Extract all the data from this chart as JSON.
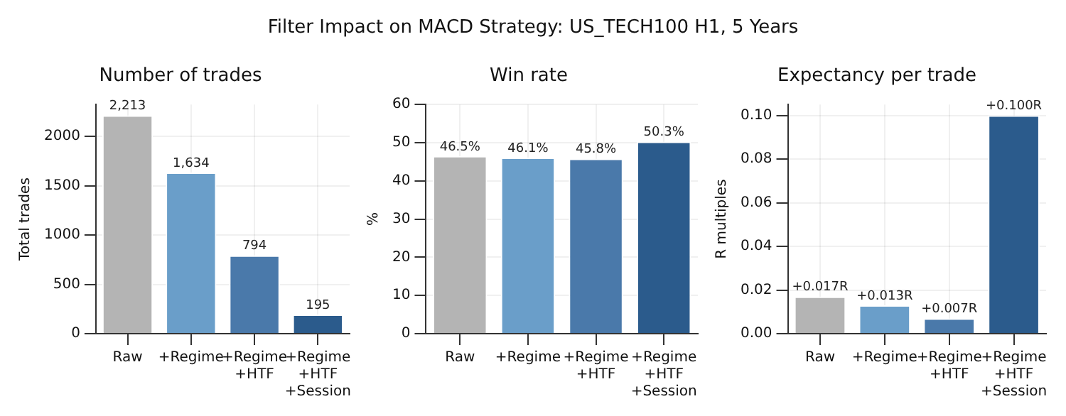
{
  "chart_data": [
    {
      "type": "bar",
      "title": "Filter Impact on MACD Strategy: US_TECH100 H1, 5 Years",
      "subtitle": "Number of trades",
      "ylabel": "Total trades",
      "categories": [
        "Raw",
        "+Regime",
        "+Regime\n+HTF",
        "+Regime\n+HTF\n+Session"
      ],
      "values": [
        2213,
        1634,
        794,
        195
      ],
      "colors": [
        "#b4b4b4",
        "#6a9ec9",
        "#4a79aa",
        "#2b5b8c"
      ],
      "value_labels": [
        "2,213",
        "1,634",
        "794",
        "195"
      ],
      "ylim": [
        0,
        2324
      ],
      "yticks": [
        0,
        500,
        1000,
        1500,
        2000
      ],
      "grid": true
    },
    {
      "type": "bar",
      "subtitle": "Win rate",
      "ylabel": "%",
      "categories": [
        "Raw",
        "+Regime",
        "+Regime\n+HTF",
        "+Regime\n+HTF\n+Session"
      ],
      "values": [
        46.5,
        46.1,
        45.8,
        50.3
      ],
      "colors": [
        "#b4b4b4",
        "#6a9ec9",
        "#4a79aa",
        "#2b5b8c"
      ],
      "value_labels": [
        "46.5%",
        "46.1%",
        "45.8%",
        "50.3%"
      ],
      "ylim": [
        0,
        60
      ],
      "yticks": [
        0,
        10,
        20,
        30,
        40,
        50,
        60
      ],
      "grid": true
    },
    {
      "type": "bar",
      "subtitle": "Expectancy per trade",
      "ylabel": "R multiples",
      "categories": [
        "Raw",
        "+Regime",
        "+Regime\n+HTF",
        "+Regime\n+HTF\n+Session"
      ],
      "values": [
        0.017,
        0.013,
        0.007,
        0.1
      ],
      "colors": [
        "#b4b4b4",
        "#6a9ec9",
        "#4a79aa",
        "#2b5b8c"
      ],
      "value_labels": [
        "+0.017R",
        "+0.013R",
        "+0.007R",
        "+0.100R"
      ],
      "ylim": [
        0,
        0.105
      ],
      "yticks": [
        {
          "value": 0,
          "label": "0.00"
        },
        {
          "value": 0.02,
          "label": "0.02"
        },
        {
          "value": 0.04,
          "label": "0.04"
        },
        {
          "value": 0.06,
          "label": "0.06"
        },
        {
          "value": 0.08,
          "label": "0.08"
        },
        {
          "value": 0.1,
          "label": "0.10"
        }
      ],
      "grid": true
    }
  ]
}
